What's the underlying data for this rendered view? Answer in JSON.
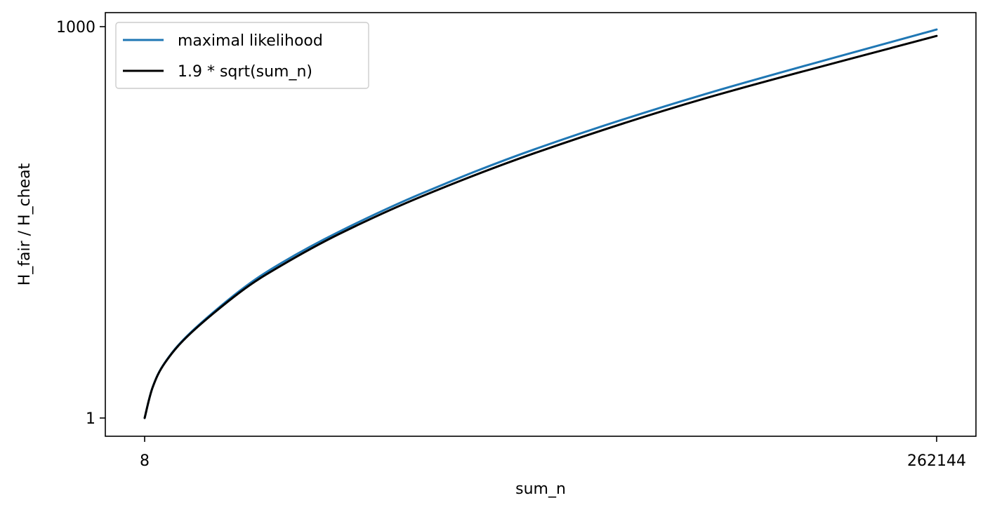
{
  "chart_data": {
    "type": "line",
    "title": "",
    "xlabel": "sum_n",
    "ylabel": "H_fair / H_cheat",
    "x_scale": "sqrt",
    "y_scale": "sqrt",
    "xlim": [
      8,
      262144
    ],
    "ylim": [
      1,
      1000
    ],
    "x_ticks": [
      8,
      262144
    ],
    "x_tick_labels": [
      "8",
      "262144"
    ],
    "y_ticks": [
      1,
      1000
    ],
    "y_tick_labels": [
      "1",
      "1000"
    ],
    "grid": false,
    "legend": {
      "placement": "upper-left",
      "entries": [
        "maximal likelihood",
        "1.9 * sqrt(sum_n)"
      ]
    },
    "x": [
      8,
      64,
      256,
      1024,
      4096,
      8192,
      16384,
      32768,
      65536,
      131072,
      262144
    ],
    "series": [
      {
        "name": "maximal likelihood",
        "color": "#1f77b4",
        "values": [
          1.0,
          11.7,
          28.8,
          58.4,
          120.0,
          172.0,
          243.0,
          345.0,
          490.0,
          692.0,
          986.0
        ]
      },
      {
        "name": "1.9 * sqrt(sum_n)",
        "color": "#000000",
        "values": [
          1.0,
          11.6,
          28.5,
          57.5,
          117.3,
          166.9,
          237.3,
          336.5,
          476.6,
          674.6,
          954.6
        ]
      }
    ]
  }
}
